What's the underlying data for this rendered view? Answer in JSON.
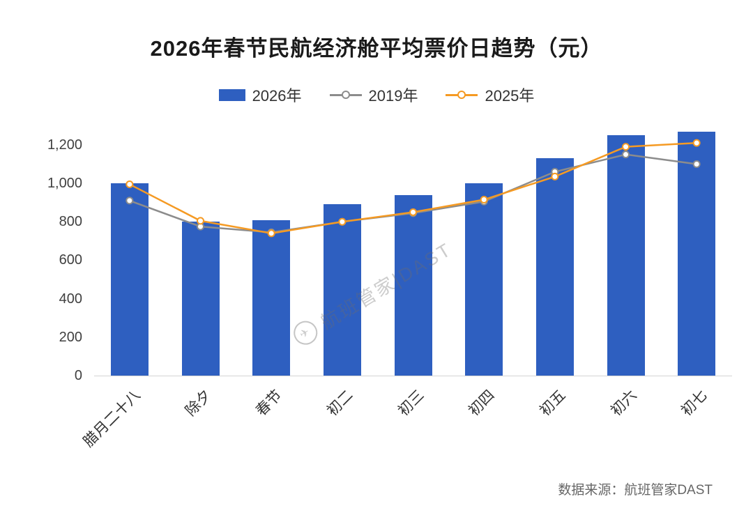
{
  "title": "2026年春节民航经济舱平均票价日趋势（元）",
  "watermark": "航班管家|DAST",
  "watermark_icon": "✈",
  "source": "数据来源：航班管家DAST",
  "colors": {
    "bar_2026": "#2E5FC0",
    "line_2019": "#8C8C8C",
    "line_2025": "#F59A23",
    "axis_line": "#D4D4D4",
    "text": "#333333"
  },
  "chart_data": {
    "type": "bar",
    "title": "2026年春节民航经济舱平均票价日趋势（元）",
    "xlabel": "",
    "ylabel": "",
    "grid": false,
    "legend_position": "top",
    "categories": [
      "腊月二十八",
      "除夕",
      "春节",
      "初二",
      "初三",
      "初四",
      "初五",
      "初六",
      "初七"
    ],
    "series": [
      {
        "name": "2026年",
        "type": "bar",
        "color": "#2E5FC0",
        "values": [
          1000,
          800,
          810,
          890,
          940,
          1000,
          1130,
          1250,
          1270
        ]
      },
      {
        "name": "2019年",
        "type": "line",
        "color": "#8C8C8C",
        "values": [
          910,
          775,
          745,
          800,
          845,
          905,
          1060,
          1150,
          1100
        ]
      },
      {
        "name": "2025年",
        "type": "line",
        "color": "#F59A23",
        "values": [
          995,
          805,
          740,
          800,
          850,
          915,
          1035,
          1190,
          1210
        ]
      }
    ],
    "ylim": [
      0,
      1330
    ],
    "yticks": [
      0,
      200,
      400,
      600,
      800,
      1000,
      1200
    ],
    "ytick_labels": [
      "0",
      "200",
      "400",
      "600",
      "800",
      "1,000",
      "1,200"
    ]
  }
}
